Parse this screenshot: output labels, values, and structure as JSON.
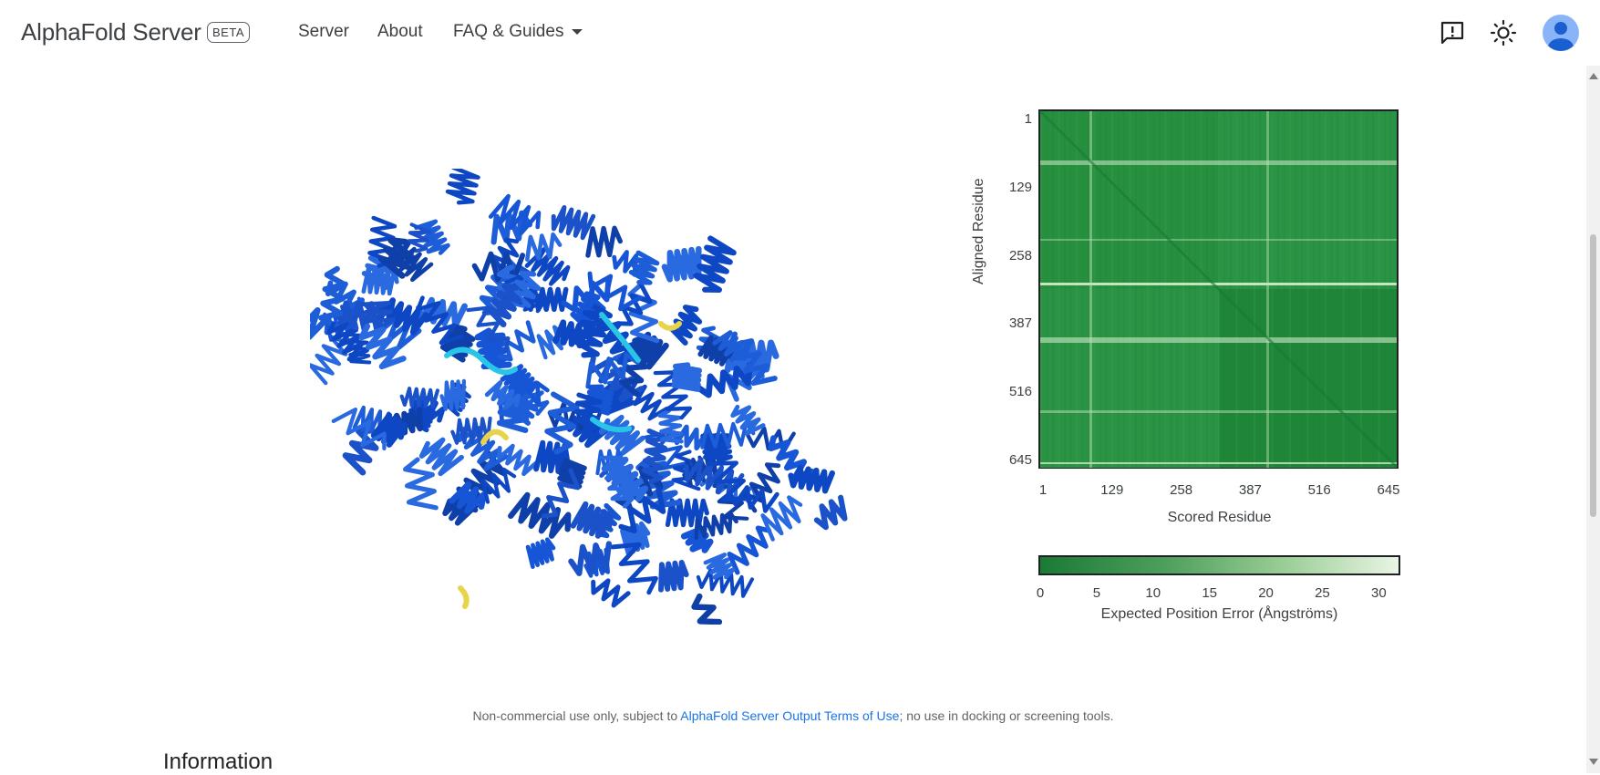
{
  "header": {
    "brand": "AlphaFold Server",
    "badge": "BETA",
    "nav": [
      "Server",
      "About",
      "FAQ & Guides"
    ],
    "icons": [
      "feedback-icon",
      "theme-toggle-icon",
      "account-avatar"
    ]
  },
  "chart_data": {
    "type": "heatmap",
    "title": "",
    "xlabel": "Scored Residue",
    "ylabel": "Aligned Residue",
    "x_ticks": [
      "1",
      "129",
      "258",
      "387",
      "516",
      "645"
    ],
    "y_ticks": [
      "1",
      "129",
      "258",
      "387",
      "516",
      "645"
    ],
    "colorbar": {
      "label": "Expected Position Error (Ångströms)",
      "ticks": [
        "0",
        "5",
        "10",
        "15",
        "20",
        "25",
        "30"
      ],
      "range": [
        0,
        31.75
      ]
    }
  },
  "footer": {
    "notice_prefix": "Non-commercial use only, subject to ",
    "notice_link": "AlphaFold Server Output Terms of Use",
    "notice_suffix": "; no use in docking or screening tools."
  },
  "section": {
    "title": "Information"
  },
  "colors": {
    "accent": "#1a73e8",
    "structure_blue": "#1d5ed8",
    "pae_dark": "#1a7a36",
    "pae_light": "#e9f5e4"
  }
}
